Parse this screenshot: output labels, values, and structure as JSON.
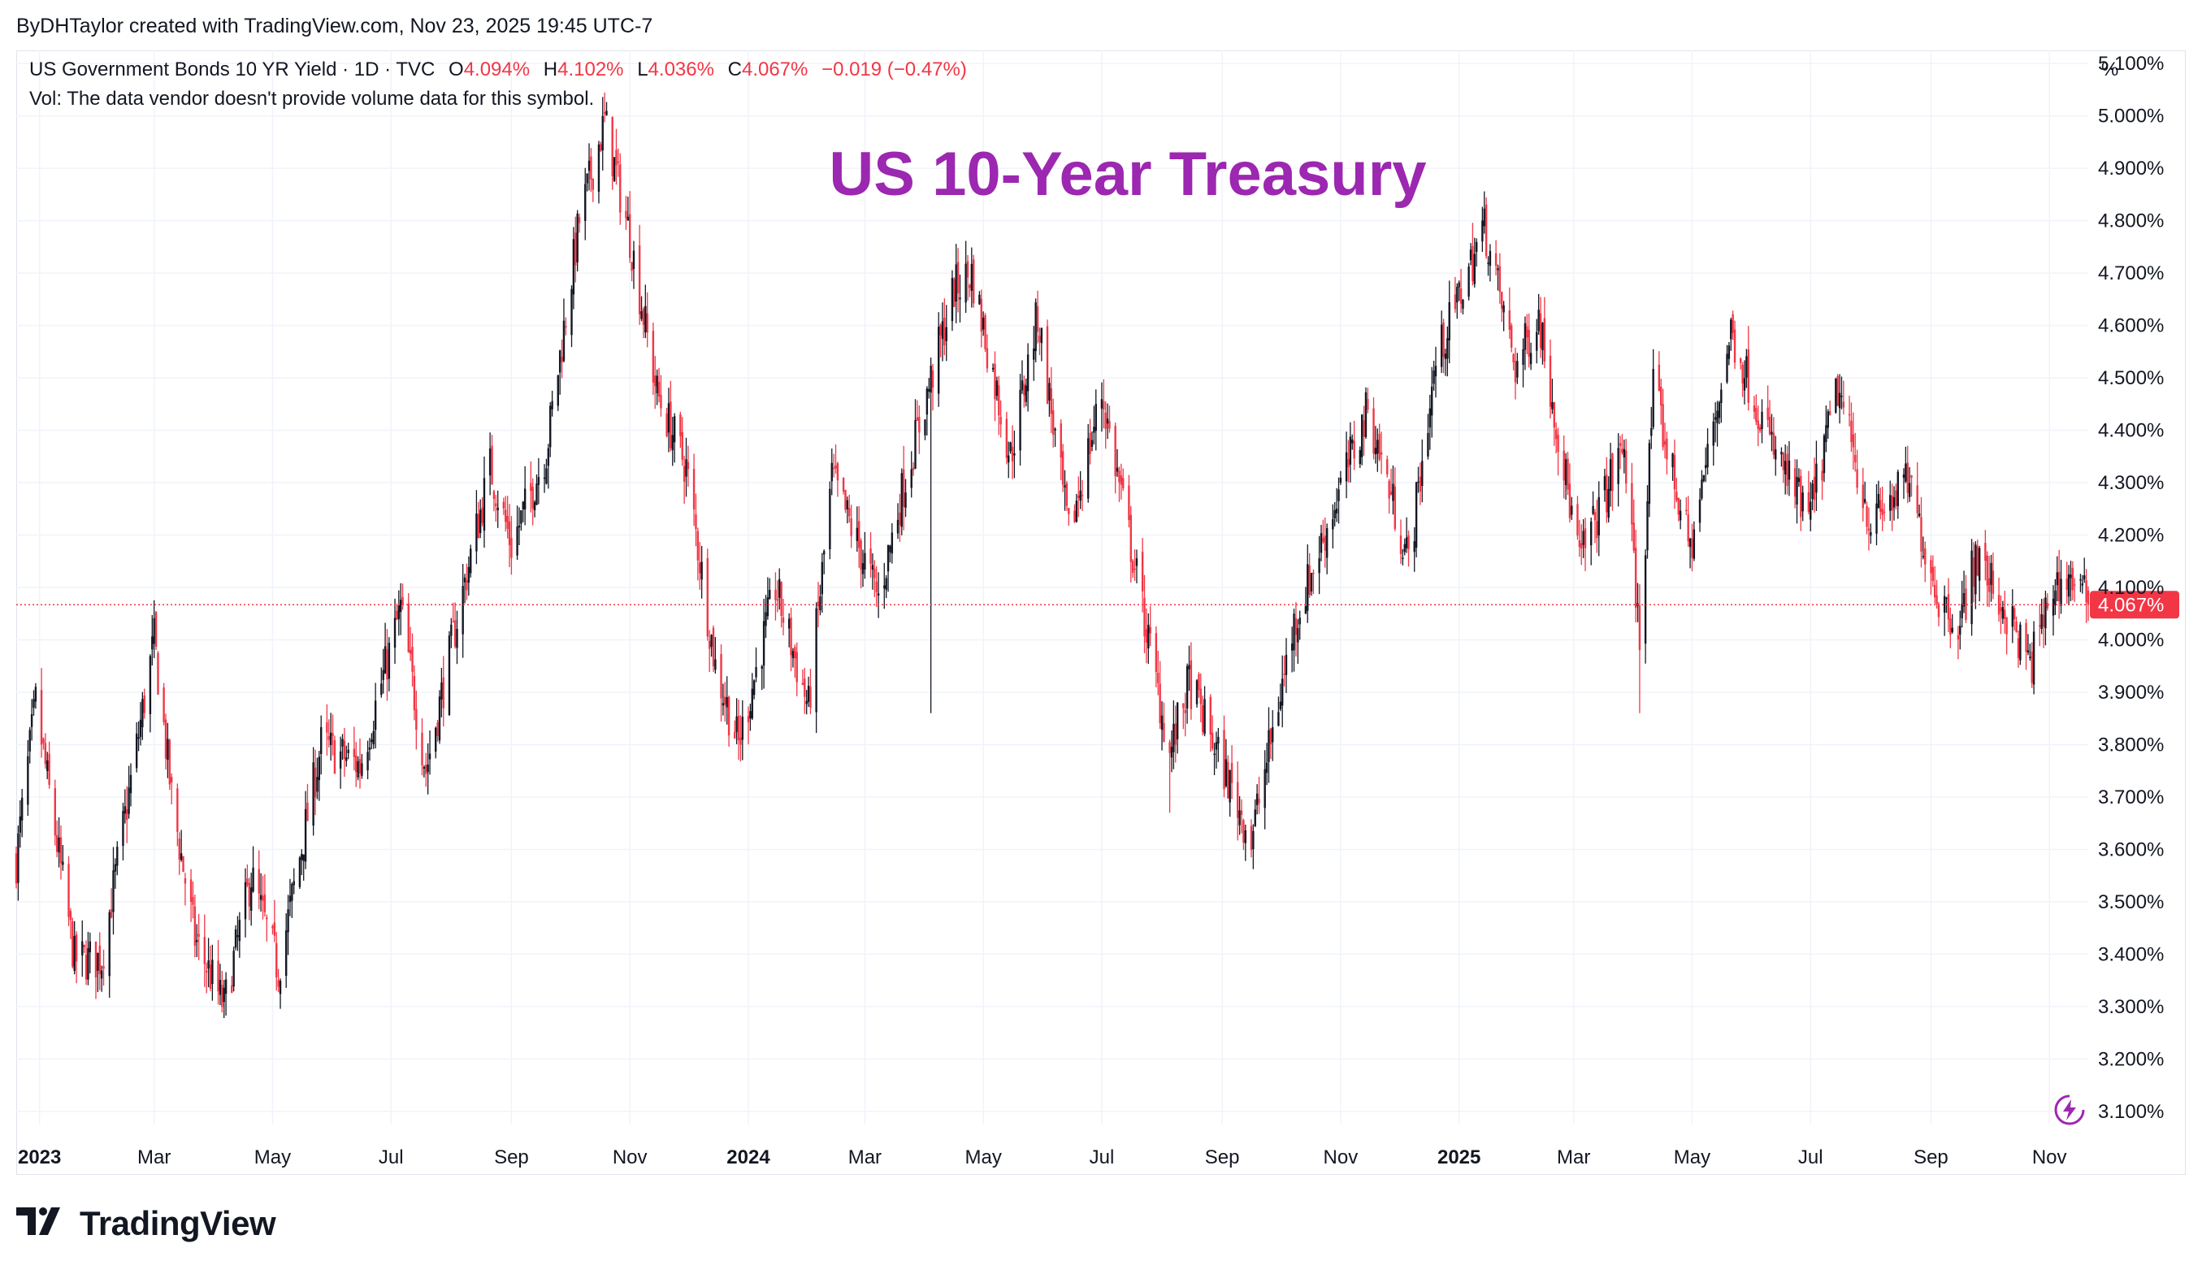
{
  "attribution": "ByDHTaylor created with TradingView.com, Nov 23, 2025 19:45 UTC-7",
  "legend": {
    "symbol": "US Government Bonds 10 YR Yield · 1D · TVC",
    "o_label": "O",
    "o_value": "4.094%",
    "h_label": "H",
    "h_value": "4.102%",
    "l_label": "L",
    "l_value": "4.036%",
    "c_label": "C",
    "c_value": "4.067%",
    "change": "−0.019 (−0.47%)",
    "volume_note": "Vol: The data vendor doesn't provide volume data for this symbol."
  },
  "unit_label": "%",
  "brand": "TradingView",
  "colors": {
    "up": "#131722",
    "down": "#f23645",
    "title": "#9c27b0",
    "grid": "#f0f3fa",
    "price_line": "#f23645"
  },
  "icons": {
    "logo": "tradingview-logo-icon",
    "bolt": "lightning-bolt-icon"
  },
  "chart_data": {
    "type": "candlestick",
    "title": "US 10-Year Treasury",
    "y_range": [
      3.075,
      5.125
    ],
    "y_ticks": [
      "3.100%",
      "3.200%",
      "3.300%",
      "3.400%",
      "3.500%",
      "3.600%",
      "3.700%",
      "3.800%",
      "3.900%",
      "4.000%",
      "4.100%",
      "4.200%",
      "4.300%",
      "4.400%",
      "4.500%",
      "4.600%",
      "4.700%",
      "4.800%",
      "4.900%",
      "5.000%",
      "5.100%"
    ],
    "x_ticks": [
      {
        "label": "2023",
        "bold": true
      },
      {
        "label": "Mar"
      },
      {
        "label": "May"
      },
      {
        "label": "Jul"
      },
      {
        "label": "Sep"
      },
      {
        "label": "Nov"
      },
      {
        "label": "2024",
        "bold": true
      },
      {
        "label": "Mar"
      },
      {
        "label": "May"
      },
      {
        "label": "Jul"
      },
      {
        "label": "Sep"
      },
      {
        "label": "Nov"
      },
      {
        "label": "2025",
        "bold": true
      },
      {
        "label": "Mar"
      },
      {
        "label": "May"
      },
      {
        "label": "Jul"
      },
      {
        "label": "Sep"
      },
      {
        "label": "Nov"
      }
    ],
    "x_range": [
      "2022-12-20",
      "2025-11-21"
    ],
    "tick_dates": [
      "2023-01-01",
      "2023-03-01",
      "2023-05-01",
      "2023-07-01",
      "2023-09-01",
      "2023-11-01",
      "2024-01-01",
      "2024-03-01",
      "2024-05-01",
      "2024-07-01",
      "2024-09-01",
      "2024-11-01",
      "2025-01-01",
      "2025-03-01",
      "2025-05-01",
      "2025-07-01",
      "2025-09-01",
      "2025-11-01"
    ],
    "last_price": 4.067,
    "last_price_label": "4.067%",
    "partial_top_label": "4.100%",
    "close_path": [
      [
        "2022-12-20",
        3.58
      ],
      [
        "2022-12-30",
        3.88
      ],
      [
        "2023-01-19",
        3.39
      ],
      [
        "2023-02-02",
        3.39
      ],
      [
        "2023-03-01",
        4.0
      ],
      [
        "2023-03-10",
        3.7
      ],
      [
        "2023-03-22",
        3.43
      ],
      [
        "2023-04-06",
        3.3
      ],
      [
        "2023-04-20",
        3.55
      ],
      [
        "2023-05-04",
        3.37
      ],
      [
        "2023-05-26",
        3.8
      ],
      [
        "2023-06-15",
        3.76
      ],
      [
        "2023-07-06",
        4.06
      ],
      [
        "2023-07-19",
        3.75
      ],
      [
        "2023-08-04",
        4.04
      ],
      [
        "2023-08-21",
        4.33
      ],
      [
        "2023-09-01",
        4.18
      ],
      [
        "2023-09-19",
        4.36
      ],
      [
        "2023-10-06",
        4.8
      ],
      [
        "2023-10-19",
        4.99
      ],
      [
        "2023-11-01",
        4.77
      ],
      [
        "2023-11-15",
        4.47
      ],
      [
        "2023-11-30",
        4.33
      ],
      [
        "2023-12-15",
        3.95
      ],
      [
        "2023-12-27",
        3.8
      ],
      [
        "2024-01-15",
        4.1
      ],
      [
        "2024-02-01",
        3.87
      ],
      [
        "2024-02-13",
        4.31
      ],
      [
        "2024-03-08",
        4.08
      ],
      [
        "2024-03-20",
        4.28
      ],
      [
        "2024-04-16",
        4.67
      ],
      [
        "2024-04-25",
        4.7
      ],
      [
        "2024-05-15",
        4.35
      ],
      [
        "2024-05-29",
        4.62
      ],
      [
        "2024-06-14",
        4.2
      ],
      [
        "2024-07-01",
        4.47
      ],
      [
        "2024-07-15",
        4.2
      ],
      [
        "2024-08-05",
        3.78
      ],
      [
        "2024-08-15",
        3.92
      ],
      [
        "2024-09-16",
        3.62
      ],
      [
        "2024-10-08",
        4.03
      ],
      [
        "2024-10-31",
        4.28
      ],
      [
        "2024-11-15",
        4.44
      ],
      [
        "2024-12-06",
        4.15
      ],
      [
        "2024-12-20",
        4.53
      ],
      [
        "2025-01-14",
        4.79
      ],
      [
        "2025-01-30",
        4.52
      ],
      [
        "2025-02-11",
        4.62
      ],
      [
        "2025-03-04",
        4.15
      ],
      [
        "2025-03-27",
        4.37
      ],
      [
        "2025-04-04",
        4.0
      ],
      [
        "2025-04-11",
        4.48
      ],
      [
        "2025-04-30",
        4.17
      ],
      [
        "2025-05-21",
        4.59
      ],
      [
        "2025-06-12",
        4.36
      ],
      [
        "2025-06-30",
        4.23
      ],
      [
        "2025-07-15",
        4.48
      ],
      [
        "2025-08-01",
        4.22
      ],
      [
        "2025-08-20",
        4.3
      ],
      [
        "2025-09-05",
        4.08
      ],
      [
        "2025-09-16",
        4.03
      ],
      [
        "2025-09-24",
        4.16
      ],
      [
        "2025-10-10",
        4.05
      ],
      [
        "2025-10-22",
        3.95
      ],
      [
        "2025-11-03",
        4.1
      ],
      [
        "2025-11-12",
        4.12
      ],
      [
        "2025-11-21",
        4.067
      ]
    ],
    "notable_lows": [
      [
        "2024-08-05",
        3.67
      ],
      [
        "2024-04-04",
        3.86
      ],
      [
        "2025-04-04",
        3.86
      ]
    ],
    "notable_highs": [
      [
        "2023-10-19",
        5.02
      ],
      [
        "2025-01-14",
        4.81
      ]
    ]
  }
}
